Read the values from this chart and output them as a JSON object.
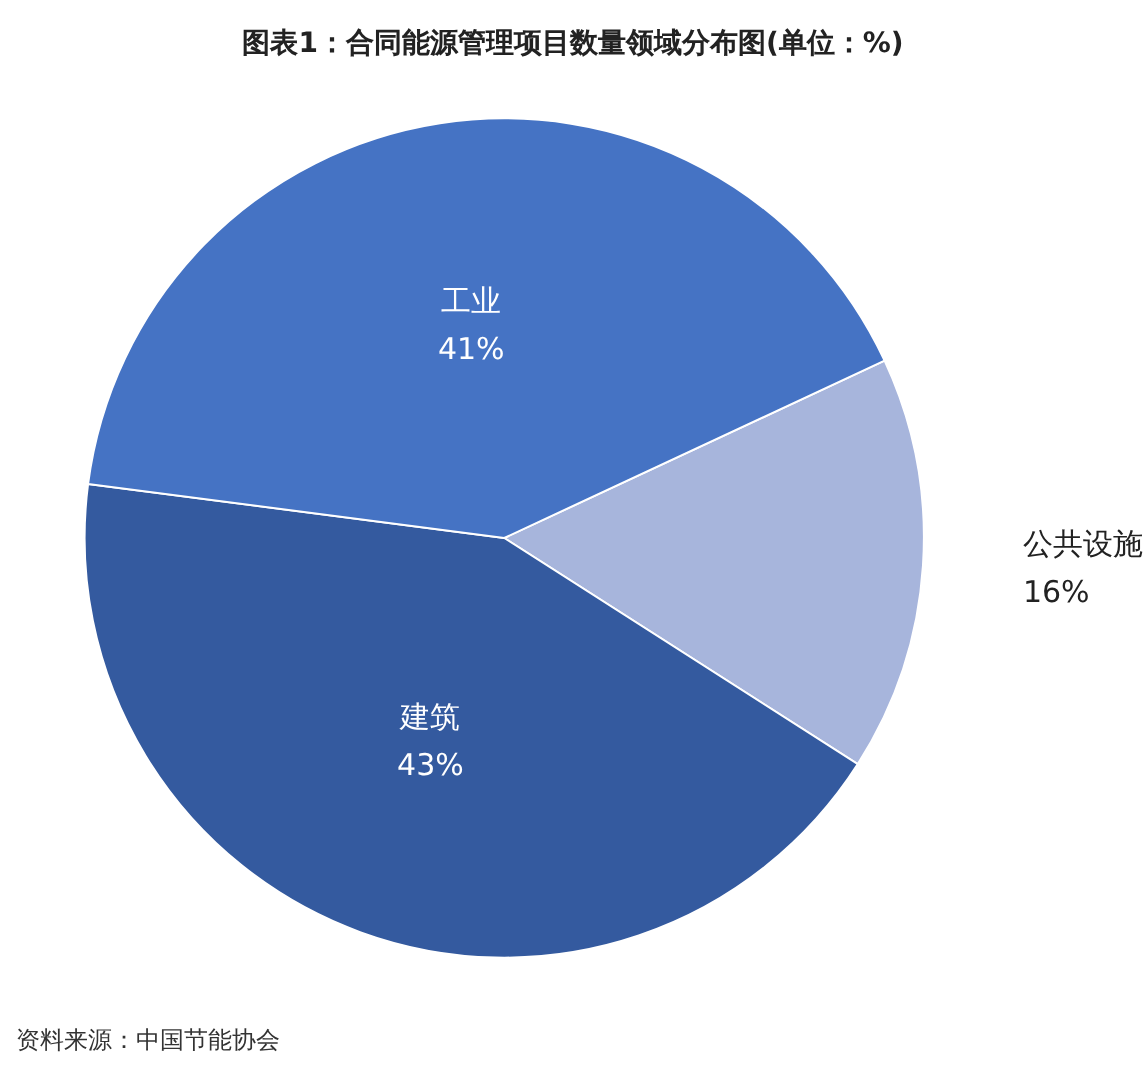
{
  "chart_data": {
    "type": "pie",
    "title": "图表1：合同能源管理项目数量领域分布图(单位：%)",
    "categories": [
      "公共设施",
      "建筑",
      "工业"
    ],
    "values": [
      16,
      43,
      41
    ],
    "colors": [
      "#a7b5dc",
      "#345a9f",
      "#4573c4"
    ],
    "value_labels": [
      "16%",
      "43%",
      "41%"
    ],
    "annotations": [
      "资料来源：中国节能协会"
    ],
    "legend": false
  }
}
